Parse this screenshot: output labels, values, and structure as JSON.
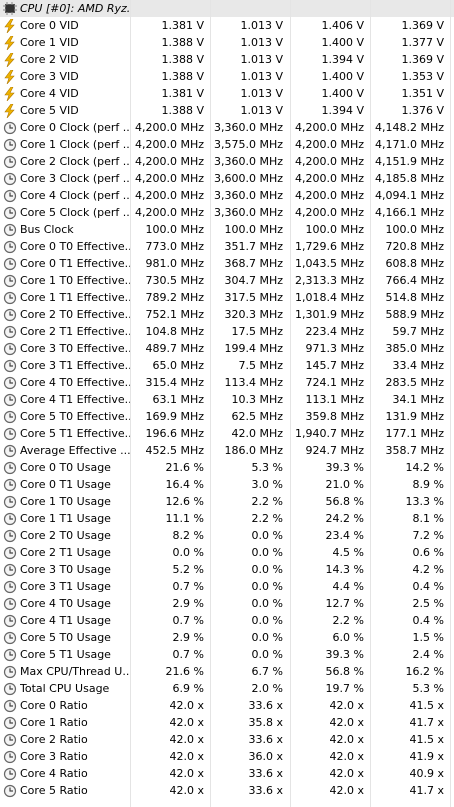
{
  "header": {
    "title": "CPU [#0]: AMD Ryz..."
  },
  "rows": [
    {
      "icon": "bolt",
      "label": "Core 0 VID",
      "values": [
        "1.381 V",
        "1.013 V",
        "1.406 V",
        "1.369 V"
      ]
    },
    {
      "icon": "bolt",
      "label": "Core 1 VID",
      "values": [
        "1.388 V",
        "1.013 V",
        "1.400 V",
        "1.377 V"
      ]
    },
    {
      "icon": "bolt",
      "label": "Core 2 VID",
      "values": [
        "1.388 V",
        "1.013 V",
        "1.394 V",
        "1.369 V"
      ]
    },
    {
      "icon": "bolt",
      "label": "Core 3 VID",
      "values": [
        "1.388 V",
        "1.013 V",
        "1.400 V",
        "1.353 V"
      ]
    },
    {
      "icon": "bolt",
      "label": "Core 4 VID",
      "values": [
        "1.381 V",
        "1.013 V",
        "1.400 V",
        "1.351 V"
      ]
    },
    {
      "icon": "bolt",
      "label": "Core 5 VID",
      "values": [
        "1.388 V",
        "1.013 V",
        "1.394 V",
        "1.376 V"
      ]
    },
    {
      "icon": "clock",
      "label": "Core 0 Clock (perf ...",
      "values": [
        "4,200.0 MHz",
        "3,360.0 MHz",
        "4,200.0 MHz",
        "4,148.2 MHz"
      ]
    },
    {
      "icon": "clock",
      "label": "Core 1 Clock (perf ...",
      "values": [
        "4,200.0 MHz",
        "3,575.0 MHz",
        "4,200.0 MHz",
        "4,171.0 MHz"
      ]
    },
    {
      "icon": "clock",
      "label": "Core 2 Clock (perf ...",
      "values": [
        "4,200.0 MHz",
        "3,360.0 MHz",
        "4,200.0 MHz",
        "4,151.9 MHz"
      ]
    },
    {
      "icon": "clock",
      "label": "Core 3 Clock (perf ...",
      "values": [
        "4,200.0 MHz",
        "3,600.0 MHz",
        "4,200.0 MHz",
        "4,185.8 MHz"
      ]
    },
    {
      "icon": "clock",
      "label": "Core 4 Clock (perf ...",
      "values": [
        "4,200.0 MHz",
        "3,360.0 MHz",
        "4,200.0 MHz",
        "4,094.1 MHz"
      ]
    },
    {
      "icon": "clock",
      "label": "Core 5 Clock (perf ...",
      "values": [
        "4,200.0 MHz",
        "3,360.0 MHz",
        "4,200.0 MHz",
        "4,166.1 MHz"
      ]
    },
    {
      "icon": "clock",
      "label": "Bus Clock",
      "values": [
        "100.0 MHz",
        "100.0 MHz",
        "100.0 MHz",
        "100.0 MHz"
      ]
    },
    {
      "icon": "clock",
      "label": "Core 0 T0 Effective...",
      "values": [
        "773.0 MHz",
        "351.7 MHz",
        "1,729.6 MHz",
        "720.8 MHz"
      ]
    },
    {
      "icon": "clock",
      "label": "Core 0 T1 Effective...",
      "values": [
        "981.0 MHz",
        "368.7 MHz",
        "1,043.5 MHz",
        "608.8 MHz"
      ]
    },
    {
      "icon": "clock",
      "label": "Core 1 T0 Effective...",
      "values": [
        "730.5 MHz",
        "304.7 MHz",
        "2,313.3 MHz",
        "766.4 MHz"
      ]
    },
    {
      "icon": "clock",
      "label": "Core 1 T1 Effective...",
      "values": [
        "789.2 MHz",
        "317.5 MHz",
        "1,018.4 MHz",
        "514.8 MHz"
      ]
    },
    {
      "icon": "clock",
      "label": "Core 2 T0 Effective...",
      "values": [
        "752.1 MHz",
        "320.3 MHz",
        "1,301.9 MHz",
        "588.9 MHz"
      ]
    },
    {
      "icon": "clock",
      "label": "Core 2 T1 Effective...",
      "values": [
        "104.8 MHz",
        "17.5 MHz",
        "223.4 MHz",
        "59.7 MHz"
      ]
    },
    {
      "icon": "clock",
      "label": "Core 3 T0 Effective...",
      "values": [
        "489.7 MHz",
        "199.4 MHz",
        "971.3 MHz",
        "385.0 MHz"
      ]
    },
    {
      "icon": "clock",
      "label": "Core 3 T1 Effective...",
      "values": [
        "65.0 MHz",
        "7.5 MHz",
        "145.7 MHz",
        "33.4 MHz"
      ]
    },
    {
      "icon": "clock",
      "label": "Core 4 T0 Effective...",
      "values": [
        "315.4 MHz",
        "113.4 MHz",
        "724.1 MHz",
        "283.5 MHz"
      ]
    },
    {
      "icon": "clock",
      "label": "Core 4 T1 Effective...",
      "values": [
        "63.1 MHz",
        "10.3 MHz",
        "113.1 MHz",
        "34.1 MHz"
      ]
    },
    {
      "icon": "clock",
      "label": "Core 5 T0 Effective...",
      "values": [
        "169.9 MHz",
        "62.5 MHz",
        "359.8 MHz",
        "131.9 MHz"
      ]
    },
    {
      "icon": "clock",
      "label": "Core 5 T1 Effective...",
      "values": [
        "196.6 MHz",
        "42.0 MHz",
        "1,940.7 MHz",
        "177.1 MHz"
      ]
    },
    {
      "icon": "clock",
      "label": "Average Effective ...",
      "values": [
        "452.5 MHz",
        "186.0 MHz",
        "924.7 MHz",
        "358.7 MHz"
      ]
    },
    {
      "icon": "clock",
      "label": "Core 0 T0 Usage",
      "values": [
        "21.6 %",
        "5.3 %",
        "39.3 %",
        "14.2 %"
      ]
    },
    {
      "icon": "clock",
      "label": "Core 0 T1 Usage",
      "values": [
        "16.4 %",
        "3.0 %",
        "21.0 %",
        "8.9 %"
      ]
    },
    {
      "icon": "clock",
      "label": "Core 1 T0 Usage",
      "values": [
        "12.6 %",
        "2.2 %",
        "56.8 %",
        "13.3 %"
      ]
    },
    {
      "icon": "clock",
      "label": "Core 1 T1 Usage",
      "values": [
        "11.1 %",
        "2.2 %",
        "24.2 %",
        "8.1 %"
      ]
    },
    {
      "icon": "clock",
      "label": "Core 2 T0 Usage",
      "values": [
        "8.2 %",
        "0.0 %",
        "23.4 %",
        "7.2 %"
      ]
    },
    {
      "icon": "clock",
      "label": "Core 2 T1 Usage",
      "values": [
        "0.0 %",
        "0.0 %",
        "4.5 %",
        "0.6 %"
      ]
    },
    {
      "icon": "clock",
      "label": "Core 3 T0 Usage",
      "values": [
        "5.2 %",
        "0.0 %",
        "14.3 %",
        "4.2 %"
      ]
    },
    {
      "icon": "clock",
      "label": "Core 3 T1 Usage",
      "values": [
        "0.7 %",
        "0.0 %",
        "4.4 %",
        "0.4 %"
      ]
    },
    {
      "icon": "clock",
      "label": "Core 4 T0 Usage",
      "values": [
        "2.9 %",
        "0.0 %",
        "12.7 %",
        "2.5 %"
      ]
    },
    {
      "icon": "clock",
      "label": "Core 4 T1 Usage",
      "values": [
        "0.7 %",
        "0.0 %",
        "2.2 %",
        "0.4 %"
      ]
    },
    {
      "icon": "clock",
      "label": "Core 5 T0 Usage",
      "values": [
        "2.9 %",
        "0.0 %",
        "6.0 %",
        "1.5 %"
      ]
    },
    {
      "icon": "clock",
      "label": "Core 5 T1 Usage",
      "values": [
        "0.7 %",
        "0.0 %",
        "39.3 %",
        "2.4 %"
      ]
    },
    {
      "icon": "clock",
      "label": "Max CPU/Thread U...",
      "values": [
        "21.6 %",
        "6.7 %",
        "56.8 %",
        "16.2 %"
      ]
    },
    {
      "icon": "clock",
      "label": "Total CPU Usage",
      "values": [
        "6.9 %",
        "2.0 %",
        "19.7 %",
        "5.3 %"
      ]
    },
    {
      "icon": "clock",
      "label": "Core 0 Ratio",
      "values": [
        "42.0 x",
        "33.6 x",
        "42.0 x",
        "41.5 x"
      ]
    },
    {
      "icon": "clock",
      "label": "Core 1 Ratio",
      "values": [
        "42.0 x",
        "35.8 x",
        "42.0 x",
        "41.7 x"
      ]
    },
    {
      "icon": "clock",
      "label": "Core 2 Ratio",
      "values": [
        "42.0 x",
        "33.6 x",
        "42.0 x",
        "41.5 x"
      ]
    },
    {
      "icon": "clock",
      "label": "Core 3 Ratio",
      "values": [
        "42.0 x",
        "36.0 x",
        "42.0 x",
        "41.9 x"
      ]
    },
    {
      "icon": "clock",
      "label": "Core 4 Ratio",
      "values": [
        "42.0 x",
        "33.6 x",
        "42.0 x",
        "40.9 x"
      ]
    },
    {
      "icon": "clock",
      "label": "Core 5 Ratio",
      "values": [
        "42.0 x",
        "33.6 x",
        "42.0 x",
        "41.7 x"
      ]
    }
  ]
}
